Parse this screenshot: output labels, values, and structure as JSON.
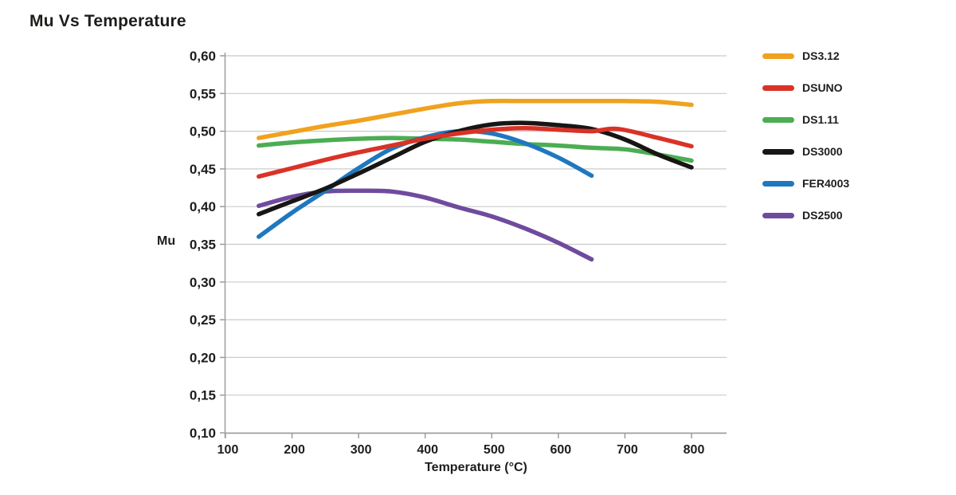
{
  "title": "Mu Vs Temperature",
  "colors": {
    "text": "#1d1d1b",
    "grid": "#cbcbcb",
    "axis": "#9d9d9d",
    "background": "#ffffff"
  },
  "chart_data": {
    "type": "line",
    "title": "Mu Vs Temperature",
    "xlabel": "Temperature (°C)",
    "ylabel": "Mu",
    "xlim": [
      100,
      850
    ],
    "ylim": [
      0.1,
      0.6
    ],
    "grid": "horizontal",
    "legend_position": "right",
    "decimal_separator": ",",
    "xticks": [
      100,
      200,
      300,
      400,
      500,
      600,
      700,
      800
    ],
    "xtick_labels": [
      "100",
      "200",
      "300",
      "400",
      "500",
      "600",
      "700",
      "800"
    ],
    "yticks": [
      0.6,
      0.55,
      0.5,
      0.45,
      0.4,
      0.35,
      0.3,
      0.25,
      0.2,
      0.15,
      0.1
    ],
    "ytick_labels": [
      "0,60",
      "0,55",
      "0,50",
      "0,45",
      "0,40",
      "0,35",
      "0,30",
      "0,25",
      "0,20",
      "0,15",
      "0,10"
    ],
    "series": [
      {
        "name": "DS3.12",
        "color": "#F0A21E",
        "x": [
          150,
          200,
          250,
          300,
          350,
          400,
          450,
          500,
          550,
          600,
          650,
          700,
          750,
          800
        ],
        "y": [
          0.491,
          0.499,
          0.507,
          0.514,
          0.522,
          0.53,
          0.537,
          0.54,
          0.54,
          0.54,
          0.54,
          0.54,
          0.539,
          0.535
        ]
      },
      {
        "name": "DSUNO",
        "color": "#DA3227",
        "x": [
          150,
          200,
          250,
          300,
          350,
          400,
          450,
          500,
          550,
          600,
          650,
          690,
          750,
          800
        ],
        "y": [
          0.44,
          0.451,
          0.462,
          0.472,
          0.481,
          0.49,
          0.497,
          0.502,
          0.504,
          0.502,
          0.5,
          0.503,
          0.491,
          0.48
        ]
      },
      {
        "name": "DS1.11",
        "color": "#4CAD53",
        "x": [
          150,
          200,
          250,
          300,
          350,
          400,
          450,
          500,
          550,
          600,
          650,
          700,
          750,
          800
        ],
        "y": [
          0.481,
          0.485,
          0.488,
          0.49,
          0.491,
          0.49,
          0.489,
          0.486,
          0.483,
          0.481,
          0.478,
          0.476,
          0.469,
          0.461
        ]
      },
      {
        "name": "DS3000",
        "color": "#181614",
        "x": [
          150,
          200,
          250,
          300,
          350,
          400,
          450,
          500,
          550,
          600,
          650,
          700,
          750,
          800
        ],
        "y": [
          0.39,
          0.407,
          0.424,
          0.444,
          0.465,
          0.486,
          0.5,
          0.509,
          0.511,
          0.508,
          0.503,
          0.489,
          0.469,
          0.452
        ]
      },
      {
        "name": "FER4003",
        "color": "#1F78BE",
        "x": [
          150,
          200,
          250,
          300,
          350,
          400,
          450,
          500,
          550,
          600,
          650
        ],
        "y": [
          0.36,
          0.392,
          0.421,
          0.451,
          0.477,
          0.492,
          0.5,
          0.497,
          0.484,
          0.465,
          0.441
        ]
      },
      {
        "name": "DS2500",
        "color": "#6F4B9E",
        "x": [
          150,
          200,
          250,
          300,
          350,
          400,
          450,
          500,
          550,
          600,
          650
        ],
        "y": [
          0.401,
          0.413,
          0.42,
          0.421,
          0.42,
          0.412,
          0.399,
          0.387,
          0.371,
          0.352,
          0.33
        ]
      }
    ]
  }
}
